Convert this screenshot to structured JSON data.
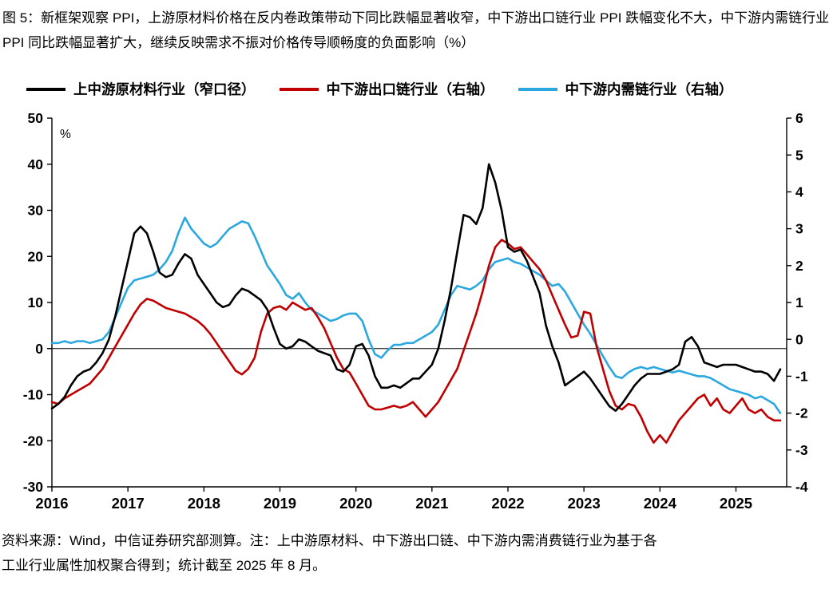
{
  "title": "图 5：新框架观察 PPI，上游原材料价格在反内卷政策带动下同比跌幅显著收窄，中下游出口链行业 PPI 跌幅变化不大，中下游内需链行业 PPI 同比跌幅显著扩大，继续反映需求不振对价格传导顺畅度的负面影响（%）",
  "legend": [
    {
      "label": "上中游原材料行业（窄口径）",
      "color": "#000000"
    },
    {
      "label": "中下游出口链行业（右轴）",
      "color": "#c00000"
    },
    {
      "label": "中下游内需链行业（右轴）",
      "color": "#2ba8e0"
    }
  ],
  "footnote_line1": "资料来源：Wind，中信证券研究部测算。注：上中游原材料、中下游出口链、中下游内需消费链行业为基于各",
  "footnote_line2": "工业行业属性加权聚合得到；统计截至 2025 年 8 月。",
  "chart_data": {
    "type": "line",
    "title": "新框架观察 PPI（同比，%）",
    "x_unit": "month",
    "x_start": "2016-01",
    "x_end": "2025-08",
    "x_months_count": 116,
    "x_tick_labels": [
      "2016",
      "2017",
      "2018",
      "2019",
      "2020",
      "2021",
      "2022",
      "2023",
      "2024",
      "2025"
    ],
    "left_axis": {
      "label": "%",
      "min": -30,
      "max": 50,
      "ticks": [
        50,
        40,
        30,
        20,
        10,
        0,
        -10,
        -20,
        -30
      ]
    },
    "right_axis": {
      "min": -4,
      "max": 6,
      "ticks": [
        6,
        5,
        4,
        3,
        2,
        1,
        0,
        -1,
        -2,
        -3,
        -4
      ]
    },
    "grid": false,
    "legend_position": "top",
    "series": [
      {
        "name": "上中游原材料行业（窄口径）",
        "axis": "left",
        "color": "#000000",
        "values": [
          -13,
          -12,
          -10.5,
          -8,
          -6,
          -5,
          -4.5,
          -3,
          -1,
          2,
          7,
          13,
          19,
          25,
          26.5,
          25,
          21,
          16.5,
          15.5,
          16,
          18.5,
          20.5,
          19.5,
          16,
          14,
          12,
          10,
          9,
          9.5,
          11.5,
          13,
          12.5,
          11.5,
          10.5,
          8.5,
          4.5,
          1,
          0,
          0.5,
          2,
          1.5,
          0.5,
          -0.5,
          -1,
          -1.5,
          -4.5,
          -5,
          -3.5,
          0.5,
          1,
          -1.5,
          -6,
          -8.5,
          -8.5,
          -8,
          -8.5,
          -7.5,
          -6.5,
          -6.5,
          -5,
          -3.5,
          0,
          6,
          13,
          21,
          29,
          28.5,
          27,
          30.5,
          40,
          36,
          30,
          22,
          21,
          21.5,
          19,
          15.5,
          12,
          5,
          0.5,
          -3,
          -8,
          -7,
          -6,
          -5,
          -6.5,
          -8.5,
          -10.5,
          -12.5,
          -13.5,
          -12,
          -10,
          -8,
          -6.5,
          -5.5,
          -5.5,
          -5.5,
          -5,
          -4.5,
          -3.5,
          1.5,
          2.5,
          0.5,
          -3,
          -3.5,
          -4,
          -3.5,
          -3.5,
          -3.5,
          -4,
          -4.5,
          -5,
          -5,
          -5.5,
          -7,
          -4.5
        ]
      },
      {
        "name": "中下游出口链行业（右轴）",
        "axis": "right",
        "color": "#c00000",
        "values": [
          -1.7,
          -1.75,
          -1.6,
          -1.5,
          -1.4,
          -1.3,
          -1.2,
          -1.0,
          -0.8,
          -0.5,
          -0.2,
          0.1,
          0.4,
          0.7,
          0.95,
          1.1,
          1.05,
          0.95,
          0.85,
          0.8,
          0.75,
          0.7,
          0.6,
          0.5,
          0.35,
          0.15,
          -0.1,
          -0.35,
          -0.6,
          -0.85,
          -0.95,
          -0.8,
          -0.5,
          0.2,
          0.7,
          0.85,
          0.9,
          0.8,
          1.0,
          0.9,
          0.8,
          0.85,
          0.6,
          0.3,
          -0.1,
          -0.5,
          -0.8,
          -0.9,
          -1.2,
          -1.5,
          -1.8,
          -1.9,
          -1.9,
          -1.85,
          -1.8,
          -1.85,
          -1.8,
          -1.7,
          -1.9,
          -2.1,
          -1.9,
          -1.7,
          -1.4,
          -1.1,
          -0.8,
          -0.3,
          0.2,
          0.7,
          1.3,
          2.0,
          2.5,
          2.7,
          2.6,
          2.45,
          2.5,
          2.3,
          2.1,
          1.9,
          1.6,
          1.2,
          0.8,
          0.4,
          0.05,
          0.1,
          0.75,
          0.7,
          -0.2,
          -0.8,
          -1.4,
          -1.8,
          -1.9,
          -1.75,
          -1.8,
          -2.1,
          -2.5,
          -2.8,
          -2.6,
          -2.8,
          -2.5,
          -2.2,
          -2.0,
          -1.8,
          -1.6,
          -1.5,
          -1.8,
          -1.6,
          -1.9,
          -2.0,
          -1.8,
          -1.6,
          -1.9,
          -2.0,
          -1.9,
          -2.1,
          -2.2,
          -2.2
        ]
      },
      {
        "name": "中下游内需链行业（右轴）",
        "axis": "right",
        "color": "#2ba8e0",
        "values": [
          -0.1,
          -0.1,
          -0.05,
          -0.1,
          -0.05,
          -0.05,
          -0.1,
          -0.05,
          0.0,
          0.2,
          0.6,
          1.0,
          1.4,
          1.6,
          1.65,
          1.7,
          1.75,
          1.9,
          2.1,
          2.4,
          2.9,
          3.3,
          3.0,
          2.8,
          2.6,
          2.5,
          2.6,
          2.8,
          3.0,
          3.1,
          3.2,
          3.15,
          2.8,
          2.4,
          2.0,
          1.75,
          1.5,
          1.2,
          1.1,
          1.25,
          1.0,
          0.8,
          0.7,
          0.6,
          0.5,
          0.55,
          0.65,
          0.7,
          0.7,
          0.5,
          0.0,
          -0.4,
          -0.5,
          -0.3,
          -0.15,
          -0.15,
          -0.1,
          -0.1,
          0.0,
          0.1,
          0.2,
          0.4,
          0.8,
          1.2,
          1.45,
          1.4,
          1.35,
          1.45,
          1.6,
          1.9,
          2.1,
          2.15,
          2.2,
          2.1,
          2.05,
          1.95,
          1.85,
          1.75,
          1.6,
          1.45,
          1.5,
          1.3,
          1.0,
          0.7,
          0.4,
          0.15,
          -0.15,
          -0.45,
          -0.75,
          -1.0,
          -1.05,
          -0.9,
          -0.8,
          -0.75,
          -0.8,
          -0.75,
          -0.8,
          -0.85,
          -0.9,
          -0.85,
          -0.9,
          -0.95,
          -1.0,
          -1.0,
          -1.05,
          -1.15,
          -1.25,
          -1.35,
          -1.4,
          -1.45,
          -1.5,
          -1.6,
          -1.55,
          -1.65,
          -1.75,
          -2.0
        ]
      }
    ]
  }
}
